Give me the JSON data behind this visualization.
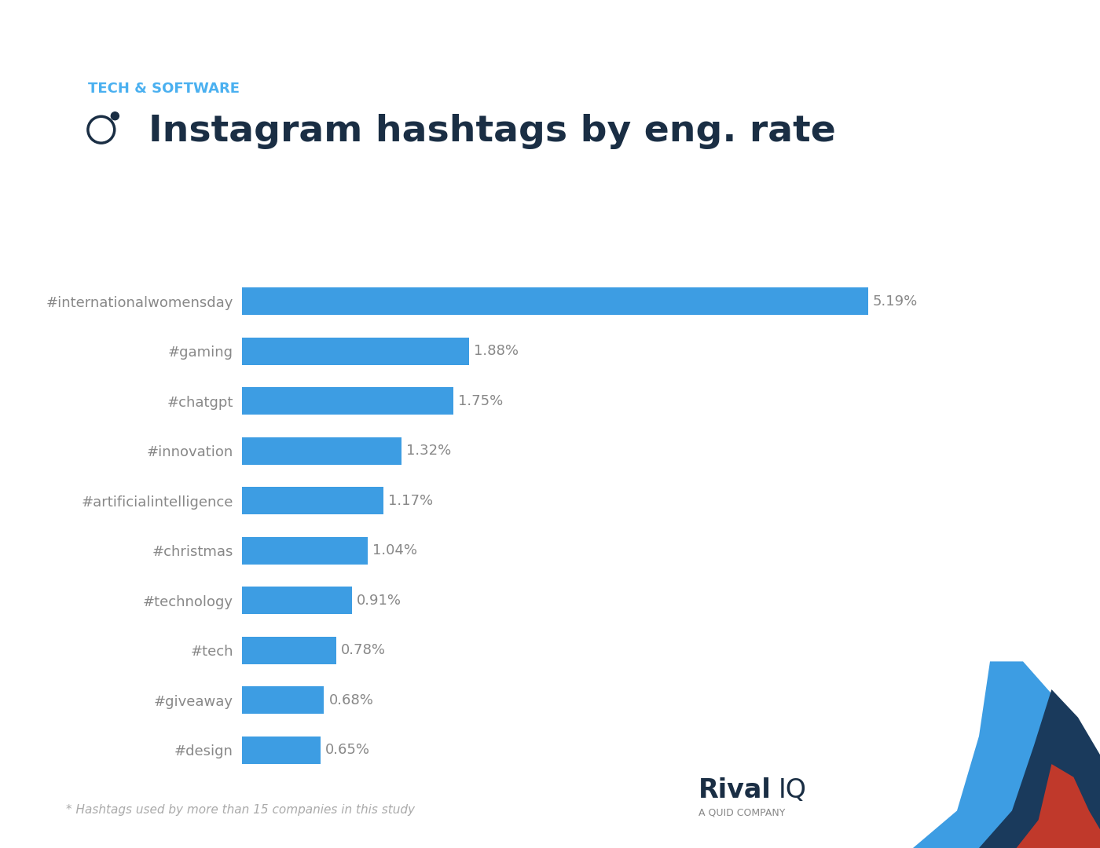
{
  "hashtags": [
    "#internationalwomensday",
    "#gaming",
    "#chatgpt",
    "#innovation",
    "#artificialintelligence",
    "#christmas",
    "#technology",
    "#tech",
    "#giveaway",
    "#design"
  ],
  "values": [
    5.19,
    1.88,
    1.75,
    1.32,
    1.17,
    1.04,
    0.91,
    0.78,
    0.68,
    0.65
  ],
  "value_labels": [
    "5.19%",
    "1.88%",
    "1.75%",
    "1.32%",
    "1.17%",
    "1.04%",
    "0.91%",
    "0.78%",
    "0.68%",
    "0.65%"
  ],
  "bar_color": "#3d9de3",
  "background_color": "#ffffff",
  "subtitle": "TECH & SOFTWARE",
  "subtitle_color": "#4ab0f0",
  "title": "Instagram hashtags by eng. rate",
  "title_color": "#1a2e44",
  "label_color": "#888888",
  "value_color": "#888888",
  "footnote": "* Hashtags used by more than 15 companies in this study",
  "footnote_color": "#aaaaaa",
  "top_stripe_color": "#4ab0f0",
  "rival_color": "#1a2e44",
  "quid_color": "#888888"
}
